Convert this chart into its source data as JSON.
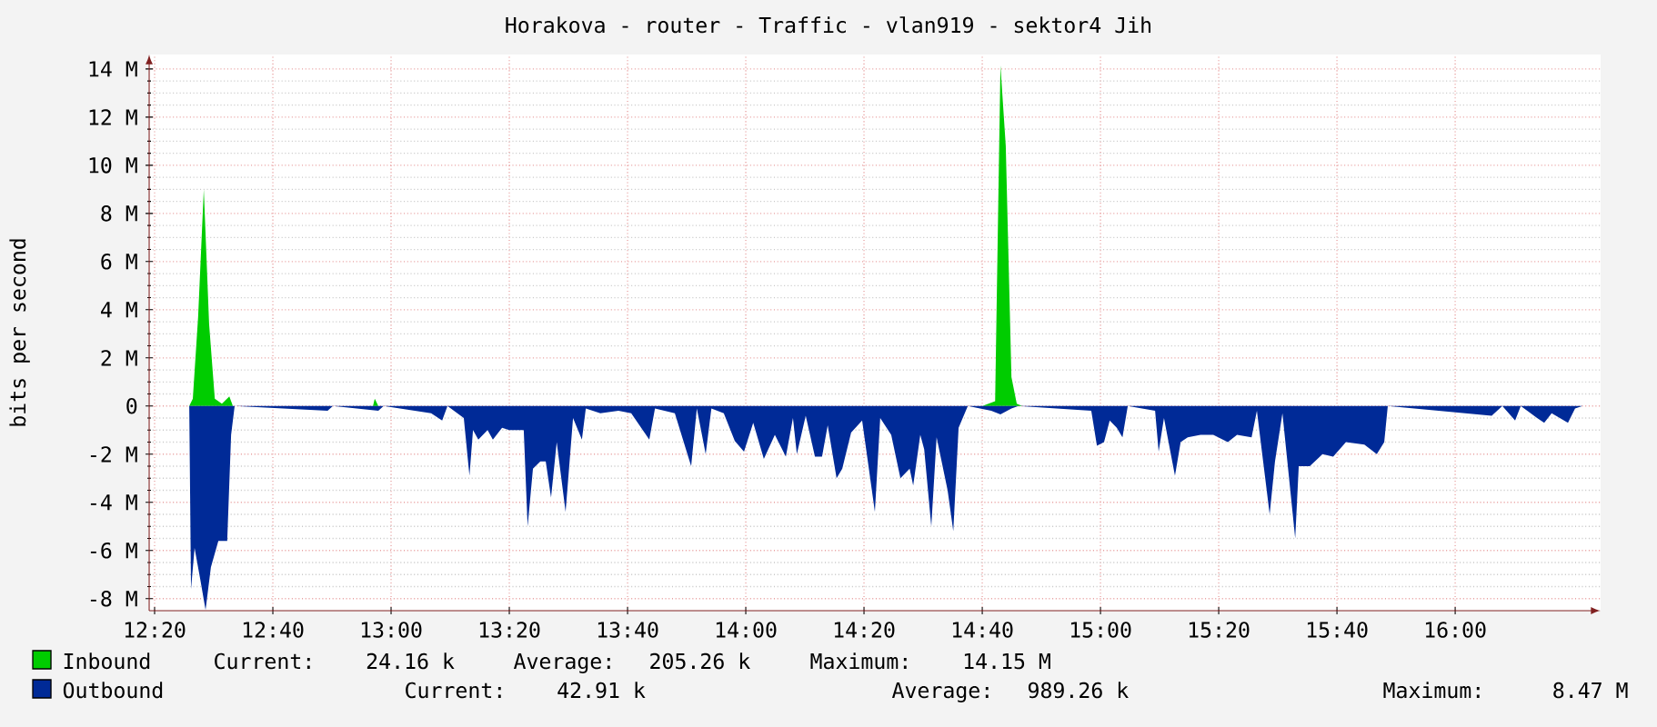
{
  "chart_data": {
    "type": "area",
    "title": "Horakova - router - Traffic - vlan919 - sektor4 Jih",
    "ylabel": "bits per second",
    "xlim": [
      12.318,
      16.41
    ],
    "ylim": [
      -8.5,
      14.6
    ],
    "xticks": [
      {
        "value": 12.3333,
        "label": "12:20"
      },
      {
        "value": 12.6667,
        "label": "12:40"
      },
      {
        "value": 13,
        "label": "13:00"
      },
      {
        "value": 13.3333,
        "label": "13:20"
      },
      {
        "value": 13.6667,
        "label": "13:40"
      },
      {
        "value": 14,
        "label": "14:00"
      },
      {
        "value": 14.3333,
        "label": "14:20"
      },
      {
        "value": 14.6667,
        "label": "14:40"
      },
      {
        "value": 15,
        "label": "15:00"
      },
      {
        "value": 15.3333,
        "label": "15:20"
      },
      {
        "value": 15.6667,
        "label": "15:40"
      },
      {
        "value": 16,
        "label": "16:00"
      }
    ],
    "yticks": [
      {
        "value": -8,
        "label": "-8 M"
      },
      {
        "value": -6,
        "label": "-6 M"
      },
      {
        "value": -4,
        "label": "-4 M"
      },
      {
        "value": -2,
        "label": "-2 M"
      },
      {
        "value": 0,
        "label": "0"
      },
      {
        "value": 2,
        "label": "2 M"
      },
      {
        "value": 4,
        "label": "4 M"
      },
      {
        "value": 6,
        "label": "6 M"
      },
      {
        "value": 8,
        "label": "8 M"
      },
      {
        "value": 10,
        "label": "10 M"
      },
      {
        "value": 12,
        "label": "12 M"
      },
      {
        "value": 14,
        "label": "14 M"
      }
    ],
    "grid": true,
    "legend": "bottom",
    "marker": "none",
    "series": [
      {
        "name": "Inbound",
        "color": "#00cc00",
        "x": [
          12.333,
          12.431,
          12.441,
          12.456,
          12.472,
          12.487,
          12.503,
          12.523,
          12.544,
          12.554,
          12.949,
          12.954,
          12.964,
          14.667,
          14.703,
          14.718,
          14.733,
          14.749,
          14.764,
          14.779,
          16.41
        ],
        "values": [
          0,
          0,
          0.3,
          3.7,
          9,
          3.4,
          0.3,
          0.1,
          0.4,
          0,
          0,
          0.3,
          0,
          0,
          0.2,
          14.15,
          10.8,
          1.2,
          0.1,
          0,
          0
        ]
      },
      {
        "name": "Outbound",
        "color": "#002a97",
        "x": [
          12.333,
          12.431,
          12.436,
          12.446,
          12.462,
          12.477,
          12.492,
          12.513,
          12.538,
          12.549,
          12.559,
          12.821,
          12.836,
          12.964,
          12.979,
          13.113,
          13.144,
          13.159,
          13.205,
          13.221,
          13.231,
          13.246,
          13.272,
          13.287,
          13.313,
          13.333,
          13.374,
          13.385,
          13.4,
          13.421,
          13.436,
          13.451,
          13.467,
          13.492,
          13.513,
          13.538,
          13.549,
          13.59,
          13.641,
          13.677,
          13.728,
          13.744,
          13.8,
          13.846,
          13.862,
          13.887,
          13.903,
          13.938,
          13.969,
          13.995,
          14.021,
          14.051,
          14.082,
          14.113,
          14.133,
          14.144,
          14.169,
          14.195,
          14.215,
          14.231,
          14.256,
          14.272,
          14.297,
          14.328,
          14.364,
          14.379,
          14.41,
          14.436,
          14.462,
          14.472,
          14.492,
          14.503,
          14.523,
          14.538,
          14.569,
          14.585,
          14.6,
          14.626,
          14.692,
          14.718,
          14.749,
          14.769,
          14.974,
          14.99,
          15.01,
          15.026,
          15.046,
          15.062,
          15.077,
          15.154,
          15.164,
          15.179,
          15.21,
          15.226,
          15.246,
          15.282,
          15.318,
          15.359,
          15.385,
          15.426,
          15.441,
          15.477,
          15.492,
          15.513,
          15.549,
          15.559,
          15.59,
          15.626,
          15.656,
          15.692,
          15.744,
          15.779,
          15.8,
          15.81,
          16.103,
          16.133,
          16.169,
          16.185,
          16.231,
          16.251,
          16.272,
          16.318,
          16.338,
          16.359,
          16.41
        ],
        "values": [
          0,
          0,
          -7.6,
          -5.9,
          -7.2,
          -8.47,
          -6.7,
          -5.6,
          -5.6,
          -1.2,
          0,
          -0.2,
          0,
          -0.2,
          0,
          -0.3,
          -0.6,
          0,
          -0.5,
          -2.9,
          -1.0,
          -1.4,
          -1.0,
          -1.4,
          -0.9,
          -1.0,
          -1.0,
          -5.0,
          -2.6,
          -2.3,
          -2.3,
          -3.8,
          -1.5,
          -4.4,
          -0.5,
          -1.4,
          -0.1,
          -0.3,
          -0.2,
          -0.3,
          -1.4,
          -0.1,
          -0.3,
          -2.5,
          -0.1,
          -2.0,
          -0.1,
          -0.3,
          -1.45,
          -1.9,
          -0.7,
          -2.2,
          -1.2,
          -2.1,
          -0.5,
          -2.0,
          -0.4,
          -2.1,
          -2.1,
          -0.8,
          -3.0,
          -2.6,
          -1.1,
          -0.6,
          -4.4,
          -0.5,
          -1.2,
          -3.0,
          -2.6,
          -3.3,
          -1.2,
          -1.8,
          -5.0,
          -1.3,
          -3.5,
          -5.2,
          -0.9,
          0,
          -0.2,
          -0.35,
          -0.1,
          0,
          -0.2,
          -1.65,
          -1.5,
          -0.6,
          -0.9,
          -1.3,
          0,
          -0.2,
          -1.9,
          -0.5,
          -2.9,
          -1.5,
          -1.3,
          -1.2,
          -1.2,
          -1.5,
          -1.2,
          -1.3,
          -0.2,
          -4.5,
          -2.3,
          -0.3,
          -5.5,
          -2.5,
          -2.5,
          -2.0,
          -2.1,
          -1.5,
          -1.6,
          -2.0,
          -1.5,
          0,
          -0.4,
          0,
          -0.6,
          0,
          -0.5,
          -0.7,
          -0.3,
          -0.7,
          -0.1,
          0,
          0
        ]
      }
    ],
    "annotations": [
      "Current:   24.16 k",
      "Average:  205.26 k",
      "Maximum:   14.15 M",
      "Current:   42.91 k",
      "Average:  989.26 k",
      "Maximum:    8.47 M"
    ]
  }
}
